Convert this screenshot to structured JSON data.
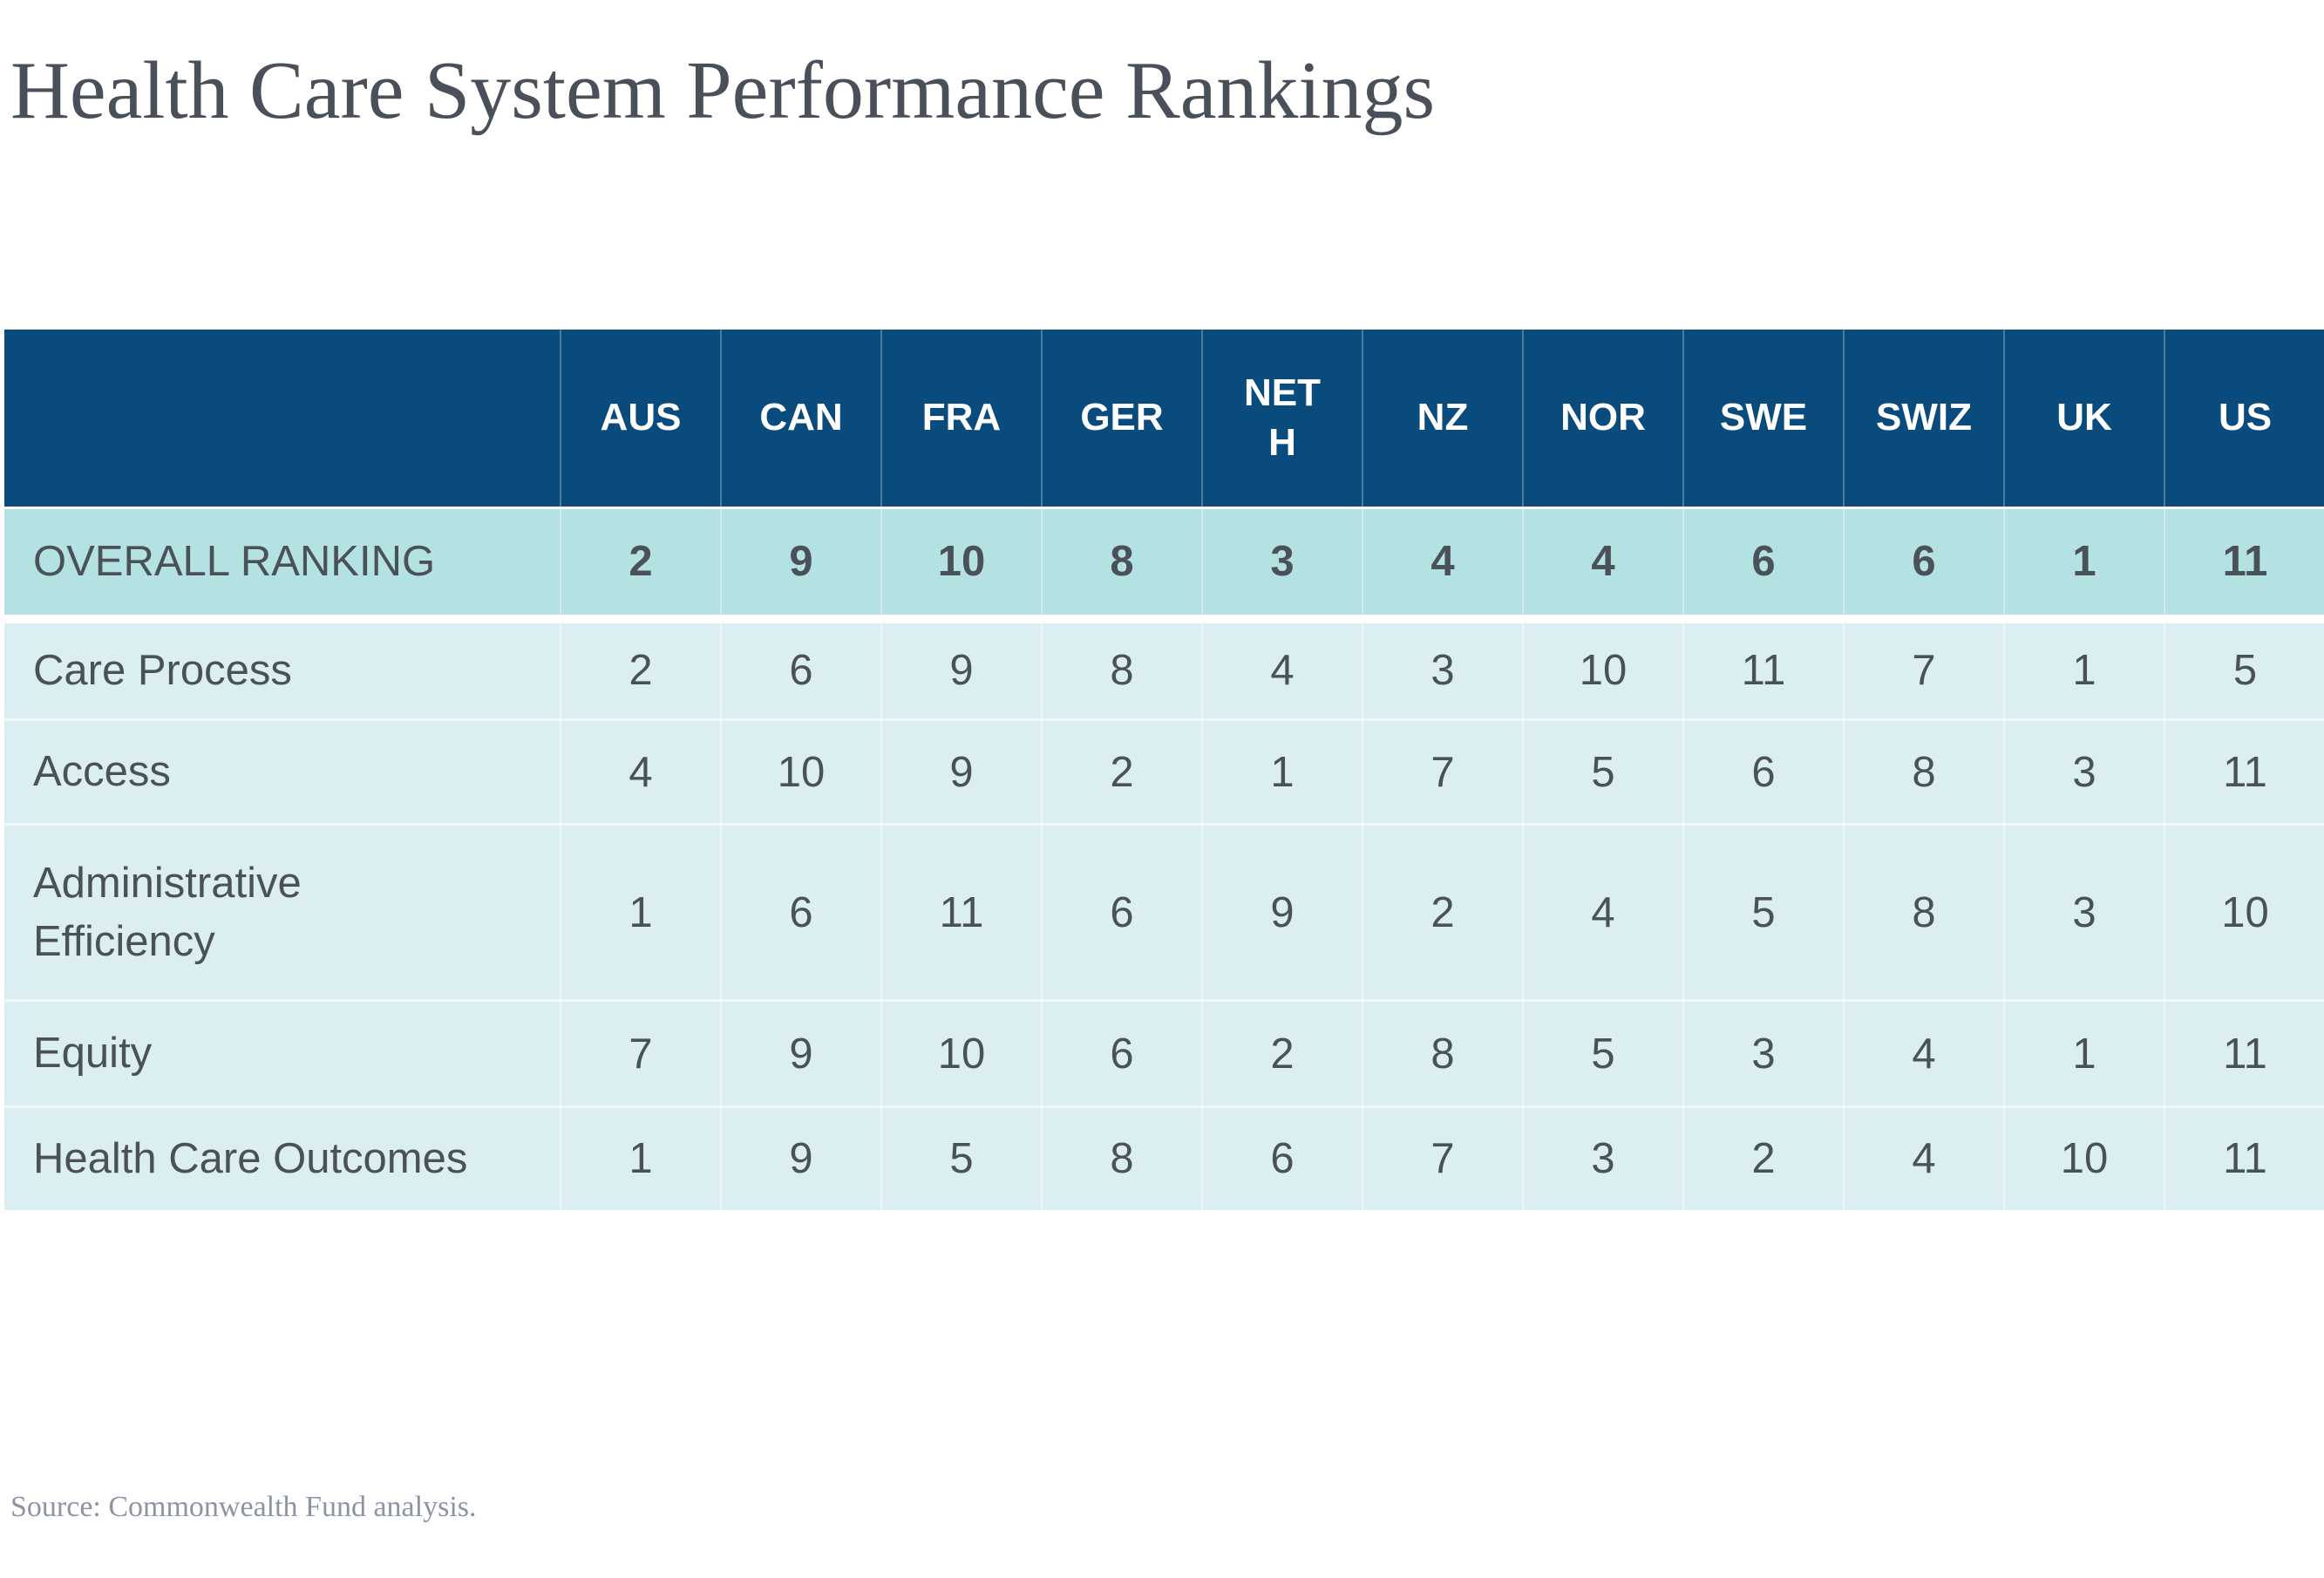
{
  "title": "Health Care System Performance Rankings",
  "source": "Source: Commonwealth Fund analysis.",
  "colors": {
    "header_bg": "#0A4B7D",
    "header_text": "#FFFFFF",
    "emphasis_row_bg": "#B4E1E2",
    "body_row_bg": "#DBEEF1",
    "text": "#4A5159",
    "title_text": "#4A505A",
    "source_text": "#8C93A2"
  },
  "chart_data": {
    "type": "table",
    "title": "Health Care System Performance Rankings",
    "columns": [
      "AUS",
      "CAN",
      "FRA",
      "GER",
      "NETH",
      "NZ",
      "NOR",
      "SWE",
      "SWIZ",
      "UK",
      "US"
    ],
    "rows": [
      {
        "label": "OVERALL RANKING",
        "emphasis": true,
        "values": [
          2,
          9,
          10,
          8,
          3,
          4,
          4,
          6,
          6,
          1,
          11
        ]
      },
      {
        "label": "Care Process",
        "emphasis": false,
        "values": [
          2,
          6,
          9,
          8,
          4,
          3,
          10,
          11,
          7,
          1,
          5
        ]
      },
      {
        "label": "Access",
        "emphasis": false,
        "values": [
          4,
          10,
          9,
          2,
          1,
          7,
          5,
          6,
          8,
          3,
          11
        ]
      },
      {
        "label": "Administrative Efficiency",
        "emphasis": false,
        "values": [
          1,
          6,
          11,
          6,
          9,
          2,
          4,
          5,
          8,
          3,
          10
        ]
      },
      {
        "label": "Equity",
        "emphasis": false,
        "values": [
          7,
          9,
          10,
          6,
          2,
          8,
          5,
          3,
          4,
          1,
          11
        ]
      },
      {
        "label": "Health Care Outcomes",
        "emphasis": false,
        "values": [
          1,
          9,
          5,
          8,
          6,
          7,
          3,
          2,
          4,
          10,
          11
        ]
      }
    ],
    "legend": "none",
    "grid": "subtle-white-separators"
  }
}
